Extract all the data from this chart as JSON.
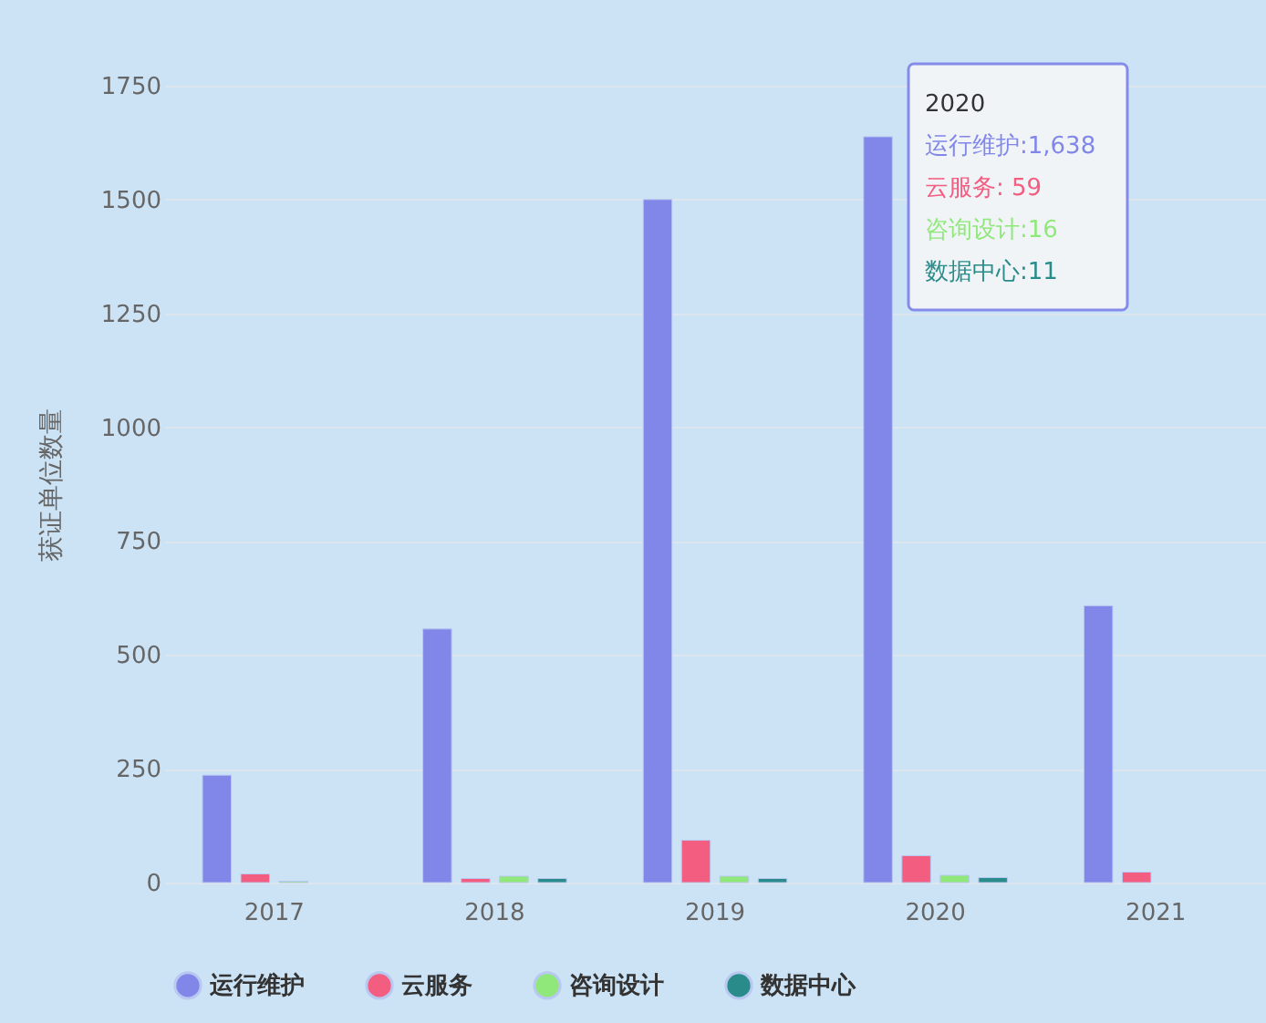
{
  "chart_data": {
    "type": "bar",
    "ylabel": "获证单位数量",
    "categories": [
      "2017",
      "2018",
      "2019",
      "2020",
      "2021"
    ],
    "series": [
      {
        "name": "运行维护",
        "color": "#8187e9",
        "values": [
          236,
          557,
          1500,
          1638,
          608
        ]
      },
      {
        "name": "云服务",
        "color": "#f25d80",
        "values": [
          19,
          9,
          93,
          59,
          23
        ]
      },
      {
        "name": "咨询设计",
        "color": "#90e87a",
        "values": [
          3,
          14,
          14,
          16,
          null
        ]
      },
      {
        "name": "数据中心",
        "color": "#2a8c8a",
        "values": [
          null,
          9,
          9,
          11,
          null
        ]
      }
    ],
    "ylim": [
      0,
      1750
    ],
    "yticks": [
      0,
      250,
      500,
      750,
      1000,
      1250,
      1500,
      1750
    ],
    "grid": "y",
    "legend": "bottom",
    "annotations": [
      "2020",
      "运行维护:1,638",
      "云服务:    59",
      "咨询设计:16",
      "数据中心:11"
    ]
  }
}
